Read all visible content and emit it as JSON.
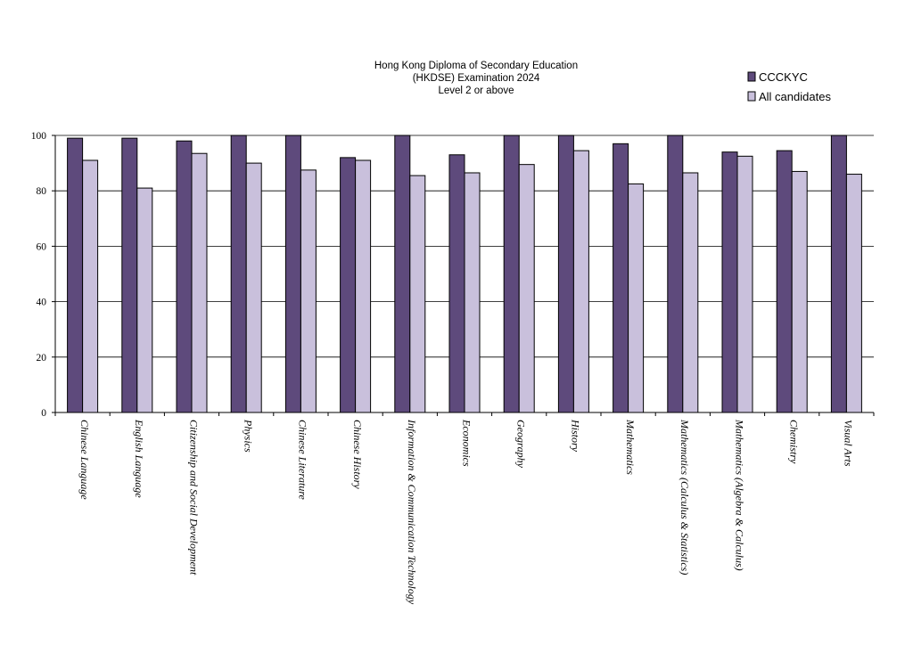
{
  "chart_data": {
    "type": "bar",
    "title": [
      "Hong Kong Diploma of Secondary Education",
      "(HKDSE) Examination 2024",
      "Level 2 or above"
    ],
    "categories": [
      "Chinese Language",
      "English Language",
      "Citizenship and Social Development",
      "Physics",
      "Chinese Literature",
      "Chinese History",
      "Information & Communication Technology",
      "Economics",
      "Geography",
      "History",
      "Mathematics",
      "Mathematics (Calculus & Statistics)",
      "Mathematics (Algebra & Calculus)",
      "Chemistry",
      "Visual Arts"
    ],
    "series": [
      {
        "name": "CCCKYC",
        "color": "#5e4a7c",
        "values": [
          99,
          99,
          98,
          100,
          100,
          92,
          100,
          93,
          100,
          100,
          97,
          100,
          94,
          94.5,
          100
        ]
      },
      {
        "name": "All candidates",
        "color": "#c9c0dc",
        "values": [
          91,
          81,
          93.5,
          90,
          87.5,
          91,
          85.5,
          86.5,
          89.5,
          94.5,
          82.5,
          86.5,
          92.5,
          87,
          86
        ]
      }
    ],
    "ylim": [
      0,
      100
    ],
    "yticks": [
      0,
      20,
      40,
      60,
      80,
      100
    ],
    "grid": true,
    "legend": "top-right"
  }
}
